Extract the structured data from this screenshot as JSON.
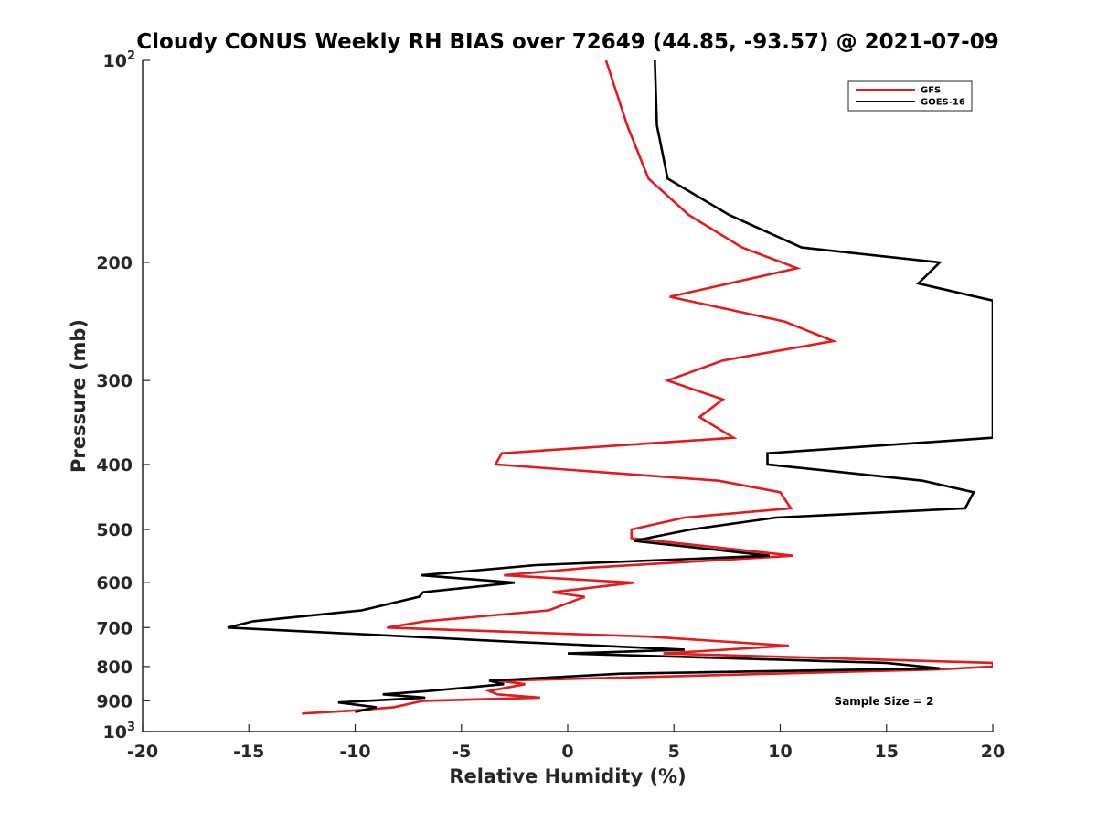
{
  "chart_data": {
    "type": "line",
    "title": "Cloudy CONUS Weekly RH BIAS over 72649 (44.85, -93.57) @ 2021-07-09",
    "xlabel": "Relative Humidity (%)",
    "ylabel": "Pressure (mb)",
    "xlim": [
      -20,
      20
    ],
    "ylim": [
      100,
      1000
    ],
    "y_scale": "log",
    "y_reversed": true,
    "x_ticks": [
      -20,
      -15,
      -10,
      -5,
      0,
      5,
      10,
      15,
      20
    ],
    "y_ticks": [
      {
        "value": 100,
        "base": "10",
        "exp": "2"
      },
      {
        "value": 200,
        "label": "200"
      },
      {
        "value": 300,
        "label": "300"
      },
      {
        "value": 400,
        "label": "400"
      },
      {
        "value": 500,
        "label": "500"
      },
      {
        "value": 600,
        "label": "600"
      },
      {
        "value": 700,
        "label": "700"
      },
      {
        "value": 800,
        "label": "800"
      },
      {
        "value": 900,
        "label": "900"
      },
      {
        "value": 1000,
        "base": "10",
        "exp": "3"
      }
    ],
    "grid": false,
    "legend_position": "top-right",
    "annotation": "Sample Size = 2",
    "series": [
      {
        "name": "GFS",
        "color": "#e41a1c",
        "points": [
          [
            1.8,
            100
          ],
          [
            2.8,
            125
          ],
          [
            3.8,
            150
          ],
          [
            5.7,
            170
          ],
          [
            8.2,
            190
          ],
          [
            10.8,
            204
          ],
          [
            4.8,
            225
          ],
          [
            10.2,
            245
          ],
          [
            12.5,
            262
          ],
          [
            7.3,
            280
          ],
          [
            4.7,
            300
          ],
          [
            7.3,
            320
          ],
          [
            6.2,
            340
          ],
          [
            7.8,
            365
          ],
          [
            -3.1,
            385
          ],
          [
            -3.4,
            400
          ],
          [
            7.1,
            423
          ],
          [
            10.0,
            440
          ],
          [
            10.5,
            465
          ],
          [
            5.5,
            480
          ],
          [
            3.0,
            500
          ],
          [
            3.0,
            515
          ],
          [
            10.6,
            547
          ],
          [
            1.0,
            570
          ],
          [
            -3.0,
            585
          ],
          [
            3.1,
            600
          ],
          [
            -0.7,
            620
          ],
          [
            0.8,
            630
          ],
          [
            -0.9,
            660
          ],
          [
            -6.7,
            685
          ],
          [
            -8.5,
            700
          ],
          [
            3.8,
            722
          ],
          [
            10.4,
            745
          ],
          [
            4.5,
            765
          ],
          [
            20.0,
            790
          ],
          [
            20.0,
            800
          ],
          [
            17.5,
            808
          ],
          [
            -3.2,
            840
          ],
          [
            -2.0,
            850
          ],
          [
            -3.7,
            870
          ],
          [
            -3.3,
            880
          ],
          [
            -1.3,
            890
          ],
          [
            -6.8,
            900
          ],
          [
            -8.2,
            920
          ],
          [
            -10.0,
            930
          ],
          [
            -12.5,
            940
          ]
        ]
      },
      {
        "name": "GOES-16",
        "color": "#000000",
        "points": [
          [
            4.1,
            100
          ],
          [
            4.2,
            125
          ],
          [
            4.7,
            150
          ],
          [
            7.6,
            170
          ],
          [
            11.0,
            190
          ],
          [
            17.5,
            200
          ],
          [
            16.5,
            215
          ],
          [
            20.0,
            228
          ],
          [
            20.0,
            365
          ],
          [
            9.4,
            385
          ],
          [
            9.4,
            400
          ],
          [
            16.7,
            423
          ],
          [
            19.1,
            440
          ],
          [
            18.7,
            465
          ],
          [
            9.8,
            480
          ],
          [
            5.8,
            500
          ],
          [
            3.1,
            520
          ],
          [
            9.5,
            547
          ],
          [
            -1.5,
            565
          ],
          [
            -6.9,
            585
          ],
          [
            -2.5,
            600
          ],
          [
            -6.8,
            620
          ],
          [
            -7.0,
            630
          ],
          [
            -9.7,
            660
          ],
          [
            -14.8,
            685
          ],
          [
            -16.0,
            700
          ],
          [
            -2.5,
            735
          ],
          [
            5.5,
            755
          ],
          [
            0.0,
            765
          ],
          [
            15.0,
            790
          ],
          [
            17.5,
            805
          ],
          [
            2.5,
            820
          ],
          [
            -3.7,
            840
          ],
          [
            -3.0,
            850
          ],
          [
            -6.5,
            870
          ],
          [
            -8.7,
            880
          ],
          [
            -6.7,
            890
          ],
          [
            -10.8,
            905
          ],
          [
            -9.0,
            920
          ],
          [
            -10.0,
            935
          ]
        ]
      }
    ]
  }
}
